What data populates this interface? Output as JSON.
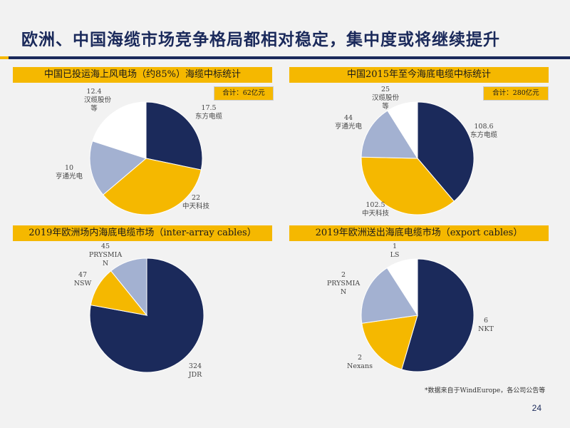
{
  "page": {
    "title": "欧洲、中国海缆市场竞争格局都相对稳定，集中度或将继续提升",
    "footnote": "*数据来自于WindEurope，各公司公告等",
    "page_number": "24"
  },
  "colors": {
    "navy": "#1b2a5b",
    "yellow": "#f5b800",
    "light_blue": "#a3b1d1",
    "white": "#ffffff"
  },
  "chart_data": [
    {
      "type": "pie",
      "title": "中国已投运海上风电场（约85%）海缆中标统计",
      "total_label": "合计：62亿元",
      "slices": [
        {
          "name": "东方电缆",
          "value": 17.5,
          "value_label": "17.5",
          "color": "#1b2a5b"
        },
        {
          "name": "中天科技",
          "value": 22,
          "value_label": "22",
          "color": "#f5b800"
        },
        {
          "name": "亨通光电",
          "value": 10,
          "value_label": "10",
          "color": "#a3b1d1"
        },
        {
          "name": "汉缆股份等",
          "value": 12.4,
          "value_label": "12.4",
          "color": "#ffffff"
        }
      ]
    },
    {
      "type": "pie",
      "title": "中国2015年至今海底电缆中标统计",
      "total_label": "合计：280亿元",
      "slices": [
        {
          "name": "东方电缆",
          "value": 108.6,
          "value_label": "108.6",
          "color": "#1b2a5b"
        },
        {
          "name": "中天科技",
          "value": 102.5,
          "value_label": "102.5",
          "color": "#f5b800"
        },
        {
          "name": "亨通光电",
          "value": 44,
          "value_label": "44",
          "color": "#a3b1d1"
        },
        {
          "name": "汉缆股份等",
          "value": 25,
          "value_label": "25",
          "color": "#ffffff"
        }
      ]
    },
    {
      "type": "pie",
      "title": "2019年欧洲场内海底电缆市场（inter-array cables）",
      "slices": [
        {
          "name": "JDR",
          "value": 324,
          "value_label": "324",
          "color": "#1b2a5b"
        },
        {
          "name": "NSW",
          "value": 47,
          "value_label": "47",
          "color": "#f5b800"
        },
        {
          "name": "PRYSMIAN",
          "value": 45,
          "value_label": "45",
          "color": "#a3b1d1"
        }
      ]
    },
    {
      "type": "pie",
      "title": "2019年欧洲送出海底电缆市场（export cables）",
      "slices": [
        {
          "name": "NKT",
          "value": 6,
          "value_label": "6",
          "color": "#1b2a5b"
        },
        {
          "name": "Nexans",
          "value": 2,
          "value_label": "2",
          "color": "#f5b800"
        },
        {
          "name": "PRYSMIAN",
          "value": 2,
          "value_label": "2",
          "color": "#a3b1d1"
        },
        {
          "name": "LS",
          "value": 1,
          "value_label": "1",
          "color": "#ffffff"
        }
      ]
    }
  ]
}
